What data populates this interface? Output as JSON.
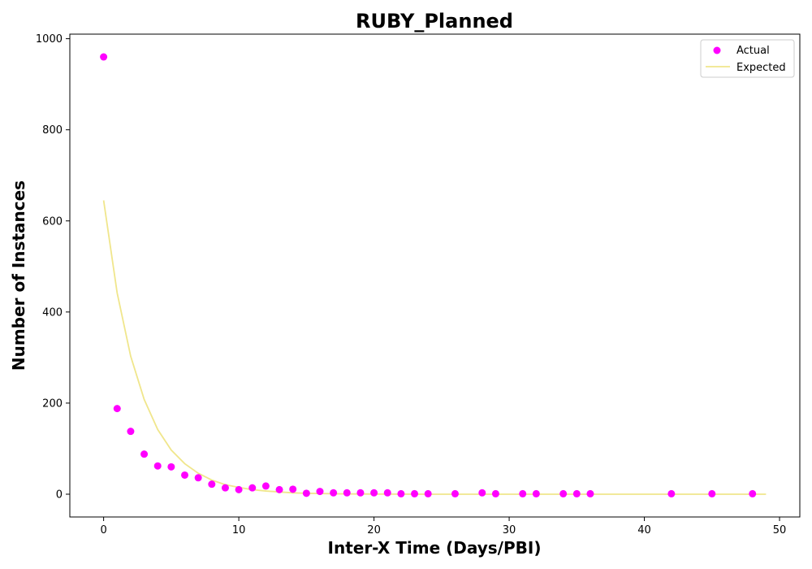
{
  "chart_data": {
    "type": "scatter",
    "title": "RUBY_Planned",
    "xlabel": "Inter-X Time (Days/PBI)",
    "ylabel": "Number of Instances",
    "xlim": [
      -2.5,
      51.5
    ],
    "ylim": [
      -50,
      1010
    ],
    "xticks": [
      0,
      10,
      20,
      30,
      40,
      50
    ],
    "yticks": [
      0,
      200,
      400,
      600,
      800,
      1000
    ],
    "legend_position": "top-right",
    "colors": {
      "actual": "#ff00ff",
      "expected": "#f0e68c"
    },
    "series": [
      {
        "name": "Actual",
        "kind": "scatter",
        "x": [
          0,
          1,
          2,
          3,
          4,
          5,
          6,
          7,
          8,
          9,
          10,
          11,
          12,
          13,
          14,
          15,
          16,
          17,
          18,
          19,
          20,
          21,
          22,
          23,
          24,
          26,
          28,
          29,
          31,
          32,
          34,
          35,
          36,
          42,
          45,
          48
        ],
        "y": [
          960,
          188,
          138,
          88,
          62,
          60,
          42,
          36,
          22,
          14,
          10,
          14,
          18,
          10,
          11,
          2,
          6,
          3,
          3,
          3,
          3,
          3,
          1,
          1,
          1,
          1,
          3,
          1,
          1,
          1,
          1,
          1,
          1,
          1,
          1,
          1
        ]
      },
      {
        "name": "Expected",
        "kind": "line",
        "x": [
          0,
          1,
          2,
          3,
          4,
          5,
          6,
          7,
          8,
          9,
          10,
          11,
          12,
          13,
          14,
          15,
          16,
          17,
          18,
          19,
          20,
          21,
          22,
          23,
          24,
          25,
          26,
          27,
          28,
          29,
          30,
          31,
          32,
          33,
          34,
          35,
          36,
          37,
          38,
          39,
          40,
          41,
          42,
          43,
          44,
          45,
          46,
          47,
          48,
          49
        ],
        "y": [
          645,
          442,
          303,
          208,
          142,
          97,
          67,
          46,
          31,
          21,
          15,
          10,
          7,
          5,
          3,
          2,
          1.5,
          1,
          0.7,
          0.5,
          0.3,
          0.2,
          0.15,
          0.1,
          0,
          0,
          0,
          0,
          0,
          0,
          0,
          0,
          0,
          0,
          0,
          0,
          0,
          0,
          0,
          0,
          0,
          0,
          0,
          0,
          0,
          0,
          0,
          0,
          0,
          0
        ]
      }
    ]
  }
}
